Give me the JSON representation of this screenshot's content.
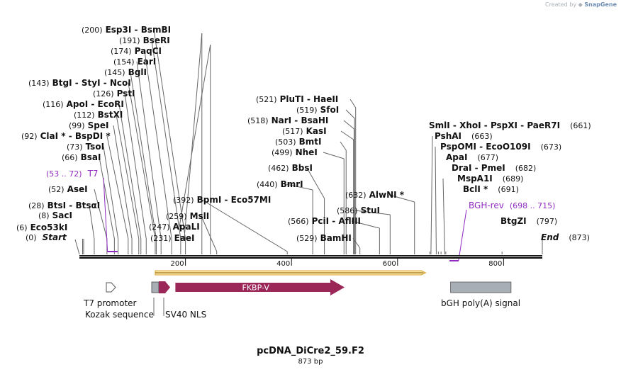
{
  "credit": {
    "prefix": "Created by",
    "brand": "SnapGene"
  },
  "title": "pcDNA_DiCre2_59.F2",
  "length_label": "873 bp",
  "sequence_length": 873,
  "colors": {
    "backbone": "#111111",
    "label": "#111111",
    "primer": "#8f2bc1",
    "feature_maroon": "#9b2758",
    "feature_gray": "#a8aeb5",
    "orf_fill": "#fde7a6",
    "orf_stroke": "#d9a434",
    "leader": "#666666"
  },
  "ruler": [
    "200",
    "400",
    "600",
    "800"
  ],
  "ruler_positions": [
    200,
    400,
    600,
    800
  ],
  "ends": [
    {
      "name": "Start",
      "pos_label": "(0)",
      "pos": 0,
      "side": "left"
    },
    {
      "name": "End",
      "pos_label": "(873)",
      "pos": 873,
      "side": "right"
    }
  ],
  "enzyme_groups": [
    {
      "pos_label": "(6)",
      "names": [
        "Eco53kI"
      ],
      "pos": 6
    },
    {
      "pos_label": "(8)",
      "names": [
        "SacI"
      ],
      "pos": 8
    },
    {
      "pos_label": "(28)",
      "names": [
        "BtsI",
        "BtsαI"
      ],
      "pos": 28
    },
    {
      "pos_label": "(52)",
      "names": [
        "AseI"
      ],
      "pos": 52
    },
    {
      "pos_label": "(66)",
      "names": [
        "BsaI"
      ],
      "pos": 66
    },
    {
      "pos_label": "(73)",
      "names": [
        "TsoI"
      ],
      "pos": 73
    },
    {
      "pos_label": "(92)",
      "names": [
        "ClaI *",
        "BspDI *"
      ],
      "pos": 92
    },
    {
      "pos_label": "(99)",
      "names": [
        "SpeI"
      ],
      "pos": 99
    },
    {
      "pos_label": "(112)",
      "names": [
        "BstXI"
      ],
      "pos": 112
    },
    {
      "pos_label": "(116)",
      "names": [
        "ApoI",
        "EcoRI"
      ],
      "pos": 116
    },
    {
      "pos_label": "(126)",
      "names": [
        "PstI"
      ],
      "pos": 126
    },
    {
      "pos_label": "(143)",
      "names": [
        "BtgI",
        "StyI",
        "NcoI"
      ],
      "pos": 143
    },
    {
      "pos_label": "(145)",
      "names": [
        "BglI"
      ],
      "pos": 145
    },
    {
      "pos_label": "(154)",
      "names": [
        "EarI"
      ],
      "pos": 154
    },
    {
      "pos_label": "(174)",
      "names": [
        "PaqCI"
      ],
      "pos": 174
    },
    {
      "pos_label": "(191)",
      "names": [
        "BseRI"
      ],
      "pos": 191
    },
    {
      "pos_label": "(200)",
      "names": [
        "Esp3I",
        "BsmBI"
      ],
      "pos": 200
    },
    {
      "pos_label": "(231)",
      "names": [
        "EaeI"
      ],
      "pos": 231
    },
    {
      "pos_label": "(247)",
      "names": [
        "ApaLI"
      ],
      "pos": 247
    },
    {
      "pos_label": "(259)",
      "names": [
        "MslI"
      ],
      "pos": 259
    },
    {
      "pos_label": "(392)",
      "names": [
        "BpmI",
        "Eco57MI"
      ],
      "pos": 392
    },
    {
      "pos_label": "(440)",
      "names": [
        "BmrI"
      ],
      "pos": 440
    },
    {
      "pos_label": "(462)",
      "names": [
        "BbsI"
      ],
      "pos": 462
    },
    {
      "pos_label": "(499)",
      "names": [
        "NheI"
      ],
      "pos": 499
    },
    {
      "pos_label": "(503)",
      "names": [
        "BmtI"
      ],
      "pos": 503
    },
    {
      "pos_label": "(517)",
      "names": [
        "KasI"
      ],
      "pos": 517
    },
    {
      "pos_label": "(518)",
      "names": [
        "NarI",
        "BsaHI"
      ],
      "pos": 518
    },
    {
      "pos_label": "(519)",
      "names": [
        "SfoI"
      ],
      "pos": 519
    },
    {
      "pos_label": "(521)",
      "names": [
        "PluTI",
        "HaeII"
      ],
      "pos": 521
    },
    {
      "pos_label": "(529)",
      "names": [
        "BamHI"
      ],
      "pos": 529
    },
    {
      "pos_label": "(566)",
      "names": [
        "PciI",
        "AflIII"
      ],
      "pos": 566
    },
    {
      "pos_label": "(586)",
      "names": [
        "StuI"
      ],
      "pos": 586
    },
    {
      "pos_label": "(632)",
      "names": [
        "AlwNI *"
      ],
      "pos": 632
    },
    {
      "pos_label": "(661)",
      "names": [
        "SmlI",
        "XhoI",
        "PspXI",
        "PaeR7I"
      ],
      "pos": 661
    },
    {
      "pos_label": "(663)",
      "names": [
        "PshAI"
      ],
      "pos": 663
    },
    {
      "pos_label": "(673)",
      "names": [
        "PspOMI",
        "EcoO109I"
      ],
      "pos": 673
    },
    {
      "pos_label": "(677)",
      "names": [
        "ApaI"
      ],
      "pos": 677
    },
    {
      "pos_label": "(682)",
      "names": [
        "DraI",
        "PmeI"
      ],
      "pos": 682
    },
    {
      "pos_label": "(689)",
      "names": [
        "MspA1I"
      ],
      "pos": 689
    },
    {
      "pos_label": "(691)",
      "names": [
        "BclI *"
      ],
      "pos": 691
    },
    {
      "pos_label": "(797)",
      "names": [
        "BtgZI"
      ],
      "pos": 797
    }
  ],
  "primers": [
    {
      "name": "T7",
      "range_label": "(53 .. 72)",
      "start": 53,
      "end": 72
    },
    {
      "name": "BGH-rev",
      "range_label": "(698 .. 715)",
      "start": 698,
      "end": 715
    }
  ],
  "orf": {
    "start": 143,
    "end": 653
  },
  "features": [
    {
      "name": "T7 promoter",
      "start": 53,
      "end": 72,
      "kind": "promoter"
    },
    {
      "name": "Kozak sequence",
      "start": 138,
      "end": 147,
      "kind": "box"
    },
    {
      "name": "SV40 NLS",
      "start": 151,
      "end": 172,
      "kind": "arrow"
    },
    {
      "name": "FKBP-V",
      "start": 181,
      "end": 500,
      "kind": "arrow"
    },
    {
      "name": "bGH poly(A) signal",
      "start": 700,
      "end": 814,
      "kind": "box"
    }
  ]
}
